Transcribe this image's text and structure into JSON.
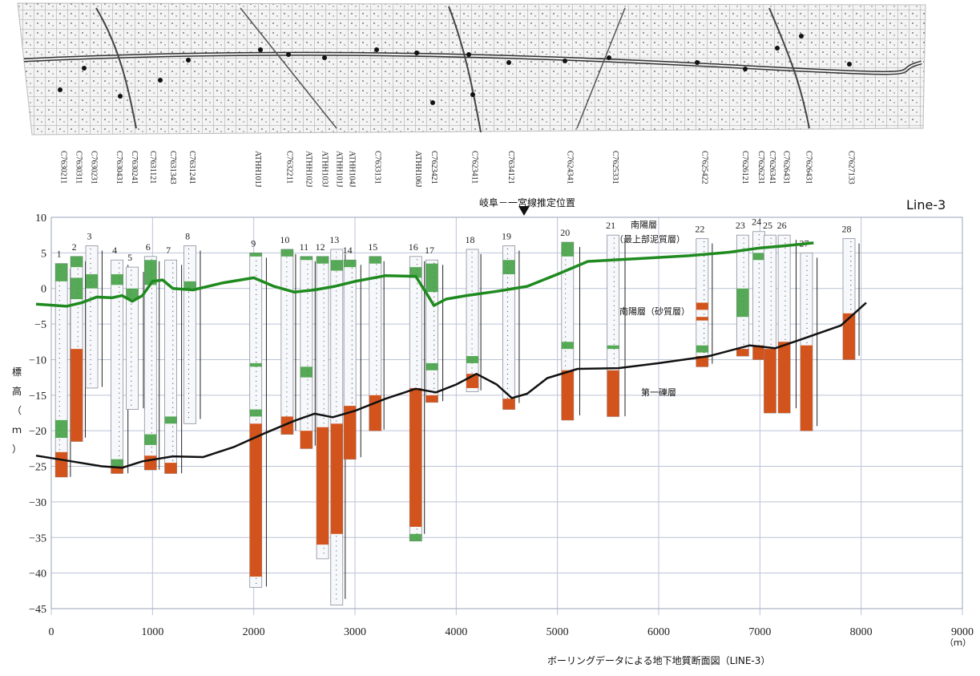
{
  "title": "Line-3",
  "caption": "ボーリングデータによる地下地質断面図（LINE-3）",
  "x_unit": "（ｍ）",
  "y_label": [
    "標",
    "高",
    "（",
    "ｍ",
    "）"
  ],
  "marker_label": "岐阜－一宮線推定位置",
  "annotations": {
    "nanyo_mud_1": "南陽層",
    "nanyo_mud_2": "（最上部泥質層）",
    "nanyo_sand": "南陽層（砂質層）",
    "gravel": "第一礫層"
  },
  "colors": {
    "green_boundary": "#1f8a1f",
    "black_boundary": "#111111",
    "gravel_fill": "#d2541c",
    "mud_fill": "#3a9b3a",
    "grid": "#bcc3d6"
  },
  "chart_data": {
    "type": "cross-section",
    "xlim": [
      0,
      9000
    ],
    "ylim": [
      -45,
      10
    ],
    "x_ticks": [
      0,
      1000,
      2000,
      3000,
      4000,
      5000,
      6000,
      7000,
      8000,
      9000
    ],
    "y_ticks": [
      10,
      5,
      0,
      -5,
      -10,
      -15,
      -20,
      -25,
      -30,
      -35,
      -40,
      -45
    ],
    "boreholes": [
      {
        "no": "1",
        "code": "C7630211",
        "x": 100,
        "top": 3.5,
        "bottom": -26.5,
        "gravel": [
          [
            -23,
            -26.5
          ]
        ],
        "mud": [
          [
            3.5,
            1
          ],
          [
            -18.5,
            -21
          ]
        ]
      },
      {
        "no": "2",
        "code": "C7630311",
        "x": 250,
        "top": 4.5,
        "bottom": -21.5,
        "gravel": [
          [
            -8.5,
            -21.5
          ]
        ],
        "mud": [
          [
            4.5,
            3
          ],
          [
            1.5,
            -1.5
          ]
        ]
      },
      {
        "no": "3",
        "code": "C7630231",
        "x": 400,
        "top": 6,
        "bottom": -14,
        "gravel": [],
        "mud": [
          [
            2,
            0
          ]
        ]
      },
      {
        "no": "4",
        "code": "C7630431",
        "x": 650,
        "top": 4,
        "bottom": -26,
        "gravel": [
          [
            -25,
            -26
          ]
        ],
        "mud": [
          [
            2,
            0.5
          ],
          [
            -24,
            -25
          ]
        ]
      },
      {
        "no": "5",
        "code": "C7630241",
        "x": 800,
        "top": 3,
        "bottom": -17,
        "gravel": [],
        "mud": [
          [
            0,
            -1.5
          ]
        ]
      },
      {
        "no": "6",
        "code": "C7631121",
        "x": 980,
        "top": 4.5,
        "bottom": -25.5,
        "gravel": [
          [
            -23.5,
            -25.5
          ]
        ],
        "mud": [
          [
            4,
            0.5
          ],
          [
            -20.5,
            -22
          ]
        ]
      },
      {
        "no": "7",
        "code": "C7631343",
        "x": 1180,
        "top": 4,
        "bottom": -26,
        "gravel": [
          [
            -24.5,
            -26
          ]
        ],
        "mud": [
          [
            -18,
            -19
          ]
        ]
      },
      {
        "no": "8",
        "code": "C7631241",
        "x": 1370,
        "top": 6,
        "bottom": -19,
        "gravel": [],
        "mud": [
          [
            1,
            0
          ]
        ]
      },
      {
        "no": "9",
        "code": "ATHH101J",
        "x": 2020,
        "top": 5,
        "bottom": -42,
        "gravel": [
          [
            -19,
            -40.5
          ]
        ],
        "mud": [
          [
            5,
            4.5
          ],
          [
            -10.5,
            -11
          ],
          [
            -17,
            -18
          ]
        ]
      },
      {
        "no": "10",
        "code": "C7632211",
        "x": 2330,
        "top": 5.5,
        "bottom": -20.5,
        "gravel": [
          [
            -18,
            -20.5
          ]
        ],
        "mud": [
          [
            5.5,
            4.5
          ]
        ]
      },
      {
        "no": "11",
        "code": "ATHH102J",
        "x": 2520,
        "top": 4.5,
        "bottom": -22.5,
        "gravel": [
          [
            -20,
            -22.5
          ]
        ],
        "mud": [
          [
            4.5,
            4
          ],
          [
            -11,
            -12.5
          ]
        ]
      },
      {
        "no": "12",
        "code": "ATHH103J",
        "x": 2680,
        "top": 4.5,
        "bottom": -38,
        "gravel": [
          [
            -19.5,
            -36
          ]
        ],
        "mud": [
          [
            4.5,
            3.5
          ]
        ]
      },
      {
        "no": "13",
        "code": "ATHH101J",
        "x": 2820,
        "top": 5.5,
        "bottom": -44.5,
        "gravel": [
          [
            -19,
            -34.5
          ]
        ],
        "mud": [
          [
            4,
            2.5
          ]
        ]
      },
      {
        "no": "14",
        "code": "ATHH104J",
        "x": 2950,
        "top": 4,
        "bottom": -24,
        "gravel": [
          [
            -16.5,
            -24
          ]
        ],
        "mud": [
          [
            4,
            3
          ]
        ]
      },
      {
        "no": "15",
        "code": "C7633131",
        "x": 3200,
        "top": 4.5,
        "bottom": -20,
        "gravel": [
          [
            -15,
            -20
          ]
        ],
        "mud": [
          [
            4.5,
            3.5
          ]
        ]
      },
      {
        "no": "16",
        "code": "ATHH106J",
        "x": 3600,
        "top": 4.5,
        "bottom": -35.5,
        "gravel": [
          [
            -14,
            -33.5
          ]
        ],
        "mud": [
          [
            3,
            1.5
          ],
          [
            -34.5,
            -35.5
          ]
        ]
      },
      {
        "no": "17",
        "code": "C7623421",
        "x": 3760,
        "top": 4,
        "bottom": -16,
        "gravel": [
          [
            -15,
            -16
          ]
        ],
        "mud": [
          [
            3.5,
            -0.5
          ],
          [
            -10.5,
            -11.5
          ]
        ]
      },
      {
        "no": "18",
        "code": "C7623411",
        "x": 4160,
        "top": 5.5,
        "bottom": -14.5,
        "gravel": [
          [
            -12,
            -14
          ]
        ],
        "mud": [
          [
            -9.5,
            -10.5
          ]
        ]
      },
      {
        "no": "19",
        "code": "C7634121",
        "x": 4520,
        "top": 6,
        "bottom": -17,
        "gravel": [
          [
            -15.5,
            -17
          ]
        ],
        "mud": [
          [
            4,
            2
          ]
        ]
      },
      {
        "no": "20",
        "code": "C7624341",
        "x": 5100,
        "top": 6.5,
        "bottom": -18.5,
        "gravel": [
          [
            -11.5,
            -18.5
          ]
        ],
        "mud": [
          [
            6.5,
            4.5
          ],
          [
            -7.5,
            -8.5
          ]
        ]
      },
      {
        "no": "21",
        "code": "C7625331",
        "x": 5550,
        "top": 7.5,
        "bottom": -18,
        "gravel": [
          [
            -11.5,
            -18
          ]
        ],
        "mud": [
          [
            -8,
            -8.5
          ]
        ]
      },
      {
        "no": "22",
        "code": "C7625422",
        "x": 6430,
        "top": 7,
        "bottom": -11,
        "gravel": [
          [
            -2,
            -3
          ],
          [
            -4,
            -4.5
          ],
          [
            -9.5,
            -11
          ]
        ],
        "mud": [
          [
            -8,
            -9
          ]
        ]
      },
      {
        "no": "23",
        "code": "C7626121",
        "x": 6830,
        "top": 7.5,
        "bottom": -9.5,
        "gravel": [
          [
            -8.5,
            -9.5
          ]
        ],
        "mud": [
          [
            0,
            -4
          ]
        ]
      },
      {
        "no": "24",
        "code": "C7626231",
        "x": 6990,
        "top": 8,
        "bottom": -10,
        "gravel": [
          [
            -8,
            -10
          ]
        ],
        "mud": [
          [
            5,
            4
          ]
        ]
      },
      {
        "no": "25",
        "code": "C7626341",
        "x": 7100,
        "top": 7.5,
        "bottom": -17.5,
        "gravel": [
          [
            -8.5,
            -17.5
          ]
        ],
        "mud": []
      },
      {
        "no": "26",
        "code": "C7626431",
        "x": 7240,
        "top": 7.5,
        "bottom": -17.5,
        "gravel": [
          [
            -7.5,
            -17.5
          ]
        ],
        "mud": []
      },
      {
        "no": "27",
        "code": "C7626431",
        "x": 7460,
        "top": 5,
        "bottom": -20,
        "gravel": [
          [
            -8,
            -20
          ]
        ],
        "mud": []
      },
      {
        "no": "28",
        "code": "C7627133",
        "x": 7880,
        "top": 7,
        "bottom": -10,
        "gravel": [
          [
            -3.5,
            -10
          ]
        ],
        "mud": []
      }
    ],
    "green_line": [
      [
        -150,
        -2.2
      ],
      [
        150,
        -2.5
      ],
      [
        300,
        -2.0
      ],
      [
        450,
        -1.2
      ],
      [
        600,
        -1.3
      ],
      [
        700,
        -1.0
      ],
      [
        800,
        -1.8
      ],
      [
        900,
        -1.0
      ],
      [
        1000,
        1.0
      ],
      [
        1100,
        1.2
      ],
      [
        1200,
        0.0
      ],
      [
        1400,
        -0.2
      ],
      [
        1700,
        0.8
      ],
      [
        2000,
        1.5
      ],
      [
        2200,
        0.3
      ],
      [
        2400,
        -0.5
      ],
      [
        2600,
        -0.2
      ],
      [
        2800,
        0.3
      ],
      [
        3000,
        1.0
      ],
      [
        3300,
        1.8
      ],
      [
        3600,
        1.7
      ],
      [
        3720,
        -1.0
      ],
      [
        3780,
        -2.4
      ],
      [
        3900,
        -1.5
      ],
      [
        4100,
        -1.0
      ],
      [
        4400,
        -0.4
      ],
      [
        4700,
        0.3
      ],
      [
        5000,
        2.0
      ],
      [
        5300,
        3.8
      ],
      [
        5800,
        4.2
      ],
      [
        6300,
        4.6
      ],
      [
        6700,
        5.1
      ],
      [
        7000,
        5.7
      ],
      [
        7250,
        6.0
      ],
      [
        7530,
        6.4
      ]
    ],
    "black_line": [
      [
        -150,
        -23.5
      ],
      [
        200,
        -24.3
      ],
      [
        500,
        -25.0
      ],
      [
        700,
        -25.2
      ],
      [
        900,
        -24.3
      ],
      [
        1200,
        -23.6
      ],
      [
        1500,
        -23.7
      ],
      [
        1800,
        -22.3
      ],
      [
        2100,
        -20.4
      ],
      [
        2400,
        -18.6
      ],
      [
        2600,
        -17.6
      ],
      [
        2780,
        -18.1
      ],
      [
        3000,
        -17.2
      ],
      [
        3300,
        -15.5
      ],
      [
        3600,
        -14.1
      ],
      [
        3800,
        -14.6
      ],
      [
        4000,
        -13.5
      ],
      [
        4200,
        -12.0
      ],
      [
        4400,
        -13.5
      ],
      [
        4550,
        -15.4
      ],
      [
        4700,
        -14.8
      ],
      [
        4900,
        -12.6
      ],
      [
        5200,
        -11.3
      ],
      [
        5600,
        -11.2
      ],
      [
        6000,
        -10.5
      ],
      [
        6500,
        -9.5
      ],
      [
        6900,
        -8.0
      ],
      [
        7150,
        -8.4
      ],
      [
        7400,
        -7.2
      ],
      [
        7800,
        -5.2
      ],
      [
        8050,
        -2.0
      ]
    ]
  }
}
